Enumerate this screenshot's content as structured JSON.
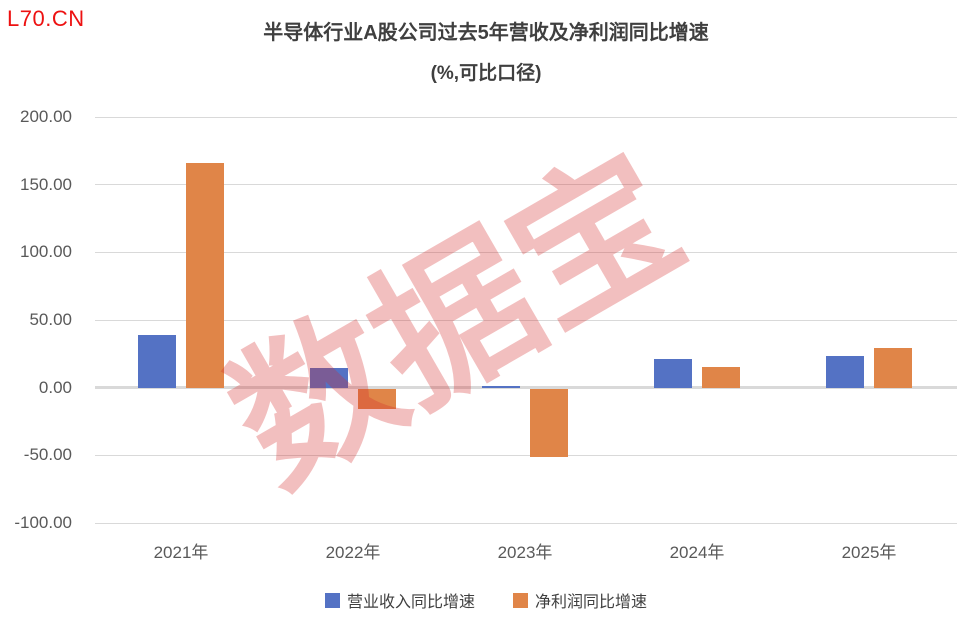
{
  "brand": "L70.CN",
  "title": {
    "line1": "半导体行业A股公司过去5年营收及净利润同比增速",
    "line2": "(%,可比口径)"
  },
  "watermark": "数据宝",
  "colors": {
    "revenue_bar": "#5472C4",
    "profit_bar": "#E08548",
    "gridline": "#D9D9D9",
    "axis_text": "#595959",
    "title_text": "#3F3F3F",
    "brand_red": "#ED1111",
    "watermark_red": "rgba(213,43,43,0.30)"
  },
  "chart_data": {
    "type": "bar",
    "title": "半导体行业A股公司过去5年营收及净利润同比增速",
    "subtitle": "(%,可比口径)",
    "categories": [
      "2021年",
      "2022年",
      "2023年",
      "2024年",
      "2025年"
    ],
    "series": [
      {
        "name": "营业收入同比增速",
        "color": "#5472C4",
        "values": [
          39.1,
          14.5,
          1.3,
          21.5,
          23.2
        ]
      },
      {
        "name": "净利润同比增速",
        "color": "#E08548",
        "values": [
          165.9,
          -15.0,
          -50.4,
          15.1,
          29.0
        ]
      }
    ],
    "ylabel": "",
    "xlabel": "",
    "ylim": [
      -100,
      200
    ],
    "grid": true,
    "legend_position": "bottom",
    "y_ticks": [
      {
        "value": 200,
        "label": "200.00"
      },
      {
        "value": 150,
        "label": "150.00"
      },
      {
        "value": 100,
        "label": "100.00"
      },
      {
        "value": 50,
        "label": "50.00"
      },
      {
        "value": 0,
        "label": "0.00"
      },
      {
        "value": -50,
        "label": "-50.00"
      },
      {
        "value": -100,
        "label": "-100.00"
      }
    ]
  }
}
